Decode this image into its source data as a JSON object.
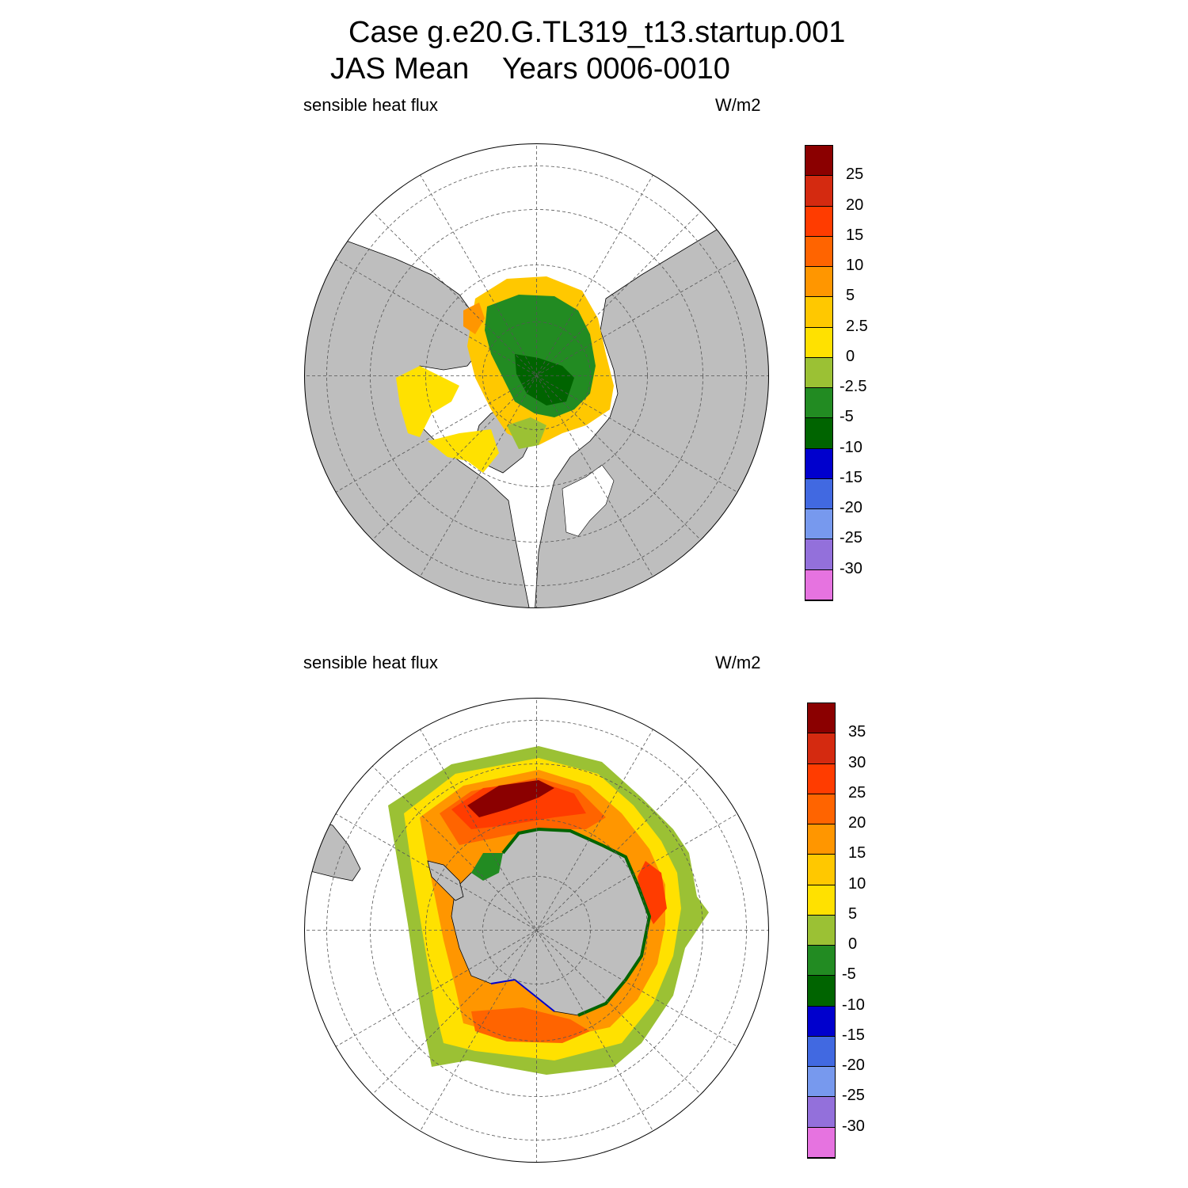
{
  "title": {
    "line1": "Case g.e20.G.TL319_t13.startup.001",
    "line2": "JAS Mean    Years 0006-0010"
  },
  "panels": [
    {
      "left_label": "sensible heat flux",
      "right_label": "W/m2",
      "hemisphere": "north",
      "colorbar": {
        "labels": [
          "25",
          "20",
          "15",
          "10",
          "5",
          "2.5",
          "0",
          "-2.5",
          "-5",
          "-10",
          "-15",
          "-20",
          "-25",
          "-30"
        ],
        "colors": [
          "#8b0000",
          "#d42a10",
          "#ff3c00",
          "#ff6400",
          "#ff9600",
          "#ffc800",
          "#ffe100",
          "#9bc134",
          "#228b22",
          "#006400",
          "#0000cd",
          "#4169e1",
          "#7799ee",
          "#9370db",
          "#e673e0"
        ]
      }
    },
    {
      "left_label": "sensible heat flux",
      "right_label": "W/m2",
      "hemisphere": "south",
      "colorbar": {
        "labels": [
          "35",
          "30",
          "25",
          "20",
          "15",
          "10",
          "5",
          "0",
          "-5",
          "-10",
          "-15",
          "-20",
          "-25",
          "-30"
        ],
        "colors": [
          "#8b0000",
          "#d42a10",
          "#ff3c00",
          "#ff6400",
          "#ff9600",
          "#ffc800",
          "#ffe100",
          "#9bc134",
          "#228b22",
          "#006400",
          "#0000cd",
          "#4169e1",
          "#7799ee",
          "#9370db",
          "#e673e0"
        ]
      }
    }
  ],
  "colors": {
    "land": "#bebebe",
    "ocean_missing": "#ffffff",
    "grid": "#555555"
  }
}
